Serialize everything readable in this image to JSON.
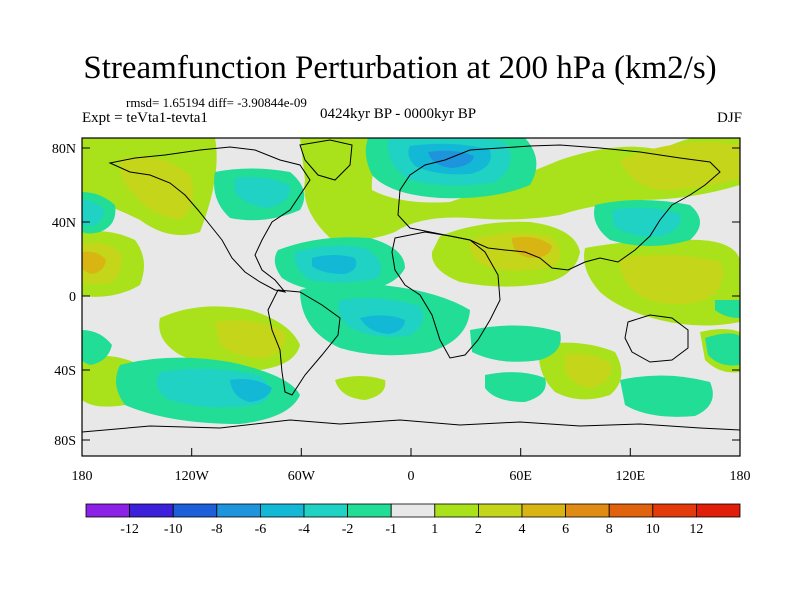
{
  "title": "Streamfunction Perturbation at 200 hPa (km2/s)",
  "stats": "rmsd= 1.65194 diff= -3.90844e-09",
  "expt": "Expt = teVta1-tevta1",
  "period": "0424kyr BP - 0000kyr BP",
  "season": "DJF",
  "lat_labels": [
    "80N",
    "40N",
    "0",
    "40S",
    "80S"
  ],
  "lon_labels": [
    "180",
    "120W",
    "60W",
    "0",
    "60E",
    "120E",
    "180"
  ],
  "colorbar": {
    "labels": [
      "-12",
      "-10",
      "-8",
      "-6",
      "-4",
      "-2",
      "-1",
      "1",
      "2",
      "4",
      "6",
      "8",
      "10",
      "12"
    ],
    "colors": [
      "#8b22e6",
      "#3d20d9",
      "#1d5fd8",
      "#1d94db",
      "#12b8d6",
      "#20d2c4",
      "#22dd96",
      "#e8e8e8",
      "#a9e21b",
      "#c5d51a",
      "#d9b514",
      "#df8b14",
      "#e0620c",
      "#e23a0a",
      "#e01e0a"
    ]
  },
  "map": {
    "background": "#e8e8e8",
    "colors": {
      "neg1": "#22dd96",
      "neg2": "#20d2c4",
      "neg4": "#12b8d6",
      "neg6": "#1d94db",
      "pos1": "#a9e21b",
      "pos2": "#c5d51a",
      "pos4": "#d9b514"
    }
  }
}
